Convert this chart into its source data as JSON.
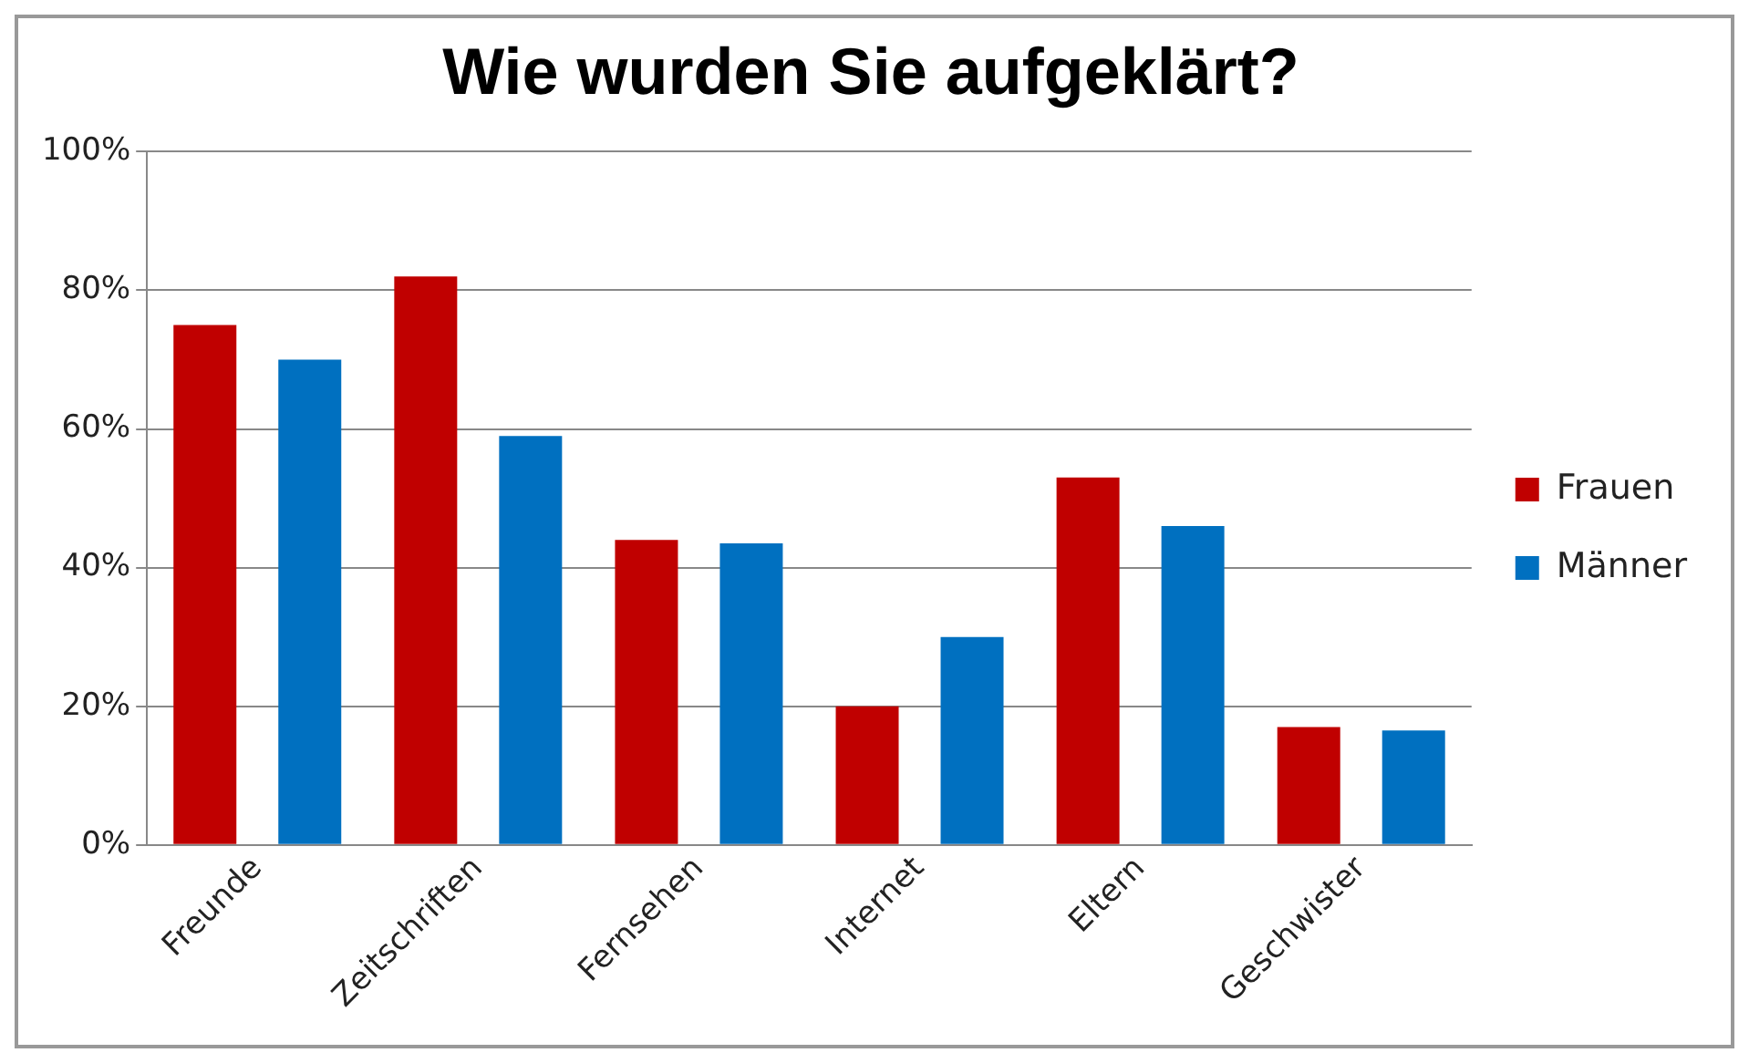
{
  "chart_data": {
    "type": "bar",
    "title": "Wie wurden Sie aufgeklärt?",
    "categories": [
      "Freunde",
      "Zeitschriften",
      "Fernsehen",
      "Internet",
      "Eltern",
      "Geschwister"
    ],
    "series": [
      {
        "name": "Frauen",
        "color": "#c00000",
        "values": [
          75,
          82,
          44,
          20,
          53,
          17
        ]
      },
      {
        "name": "Männer",
        "color": "#0070c0",
        "values": [
          70,
          59,
          43.5,
          30,
          46,
          16.5
        ]
      }
    ],
    "ylim": [
      0,
      100
    ],
    "yticks": [
      {
        "value": 0,
        "label": "0%"
      },
      {
        "value": 20,
        "label": "20%"
      },
      {
        "value": 40,
        "label": "40%"
      },
      {
        "value": 60,
        "label": "60%"
      },
      {
        "value": 80,
        "label": "80%"
      },
      {
        "value": 100,
        "label": "100%"
      }
    ],
    "grid": "y",
    "legend": "right"
  }
}
